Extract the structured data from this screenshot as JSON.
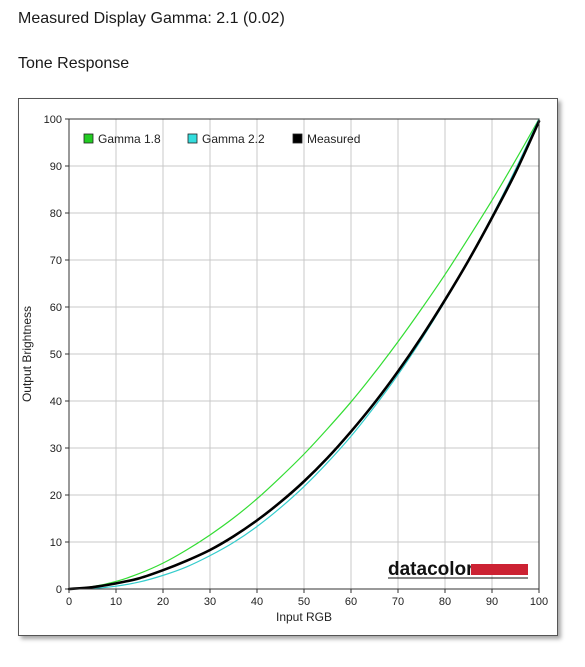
{
  "page": {
    "gamma_heading": "Measured Display Gamma: 2.1 (0.02)",
    "tone_heading": "Tone Response"
  },
  "logo": {
    "text": "datacolor",
    "bar_color": "#cc2233"
  },
  "chart_data": {
    "type": "line",
    "title": "",
    "xlabel": "Input RGB",
    "ylabel": "Output Brightness",
    "xlim": [
      0,
      100
    ],
    "ylim": [
      0,
      100
    ],
    "xticks": [
      0,
      10,
      20,
      30,
      40,
      50,
      60,
      70,
      80,
      90,
      100
    ],
    "yticks": [
      0,
      10,
      20,
      30,
      40,
      50,
      60,
      70,
      80,
      90,
      100
    ],
    "grid": true,
    "legend_position": "top-left",
    "x": [
      0,
      5,
      10,
      15,
      20,
      25,
      30,
      35,
      40,
      45,
      50,
      55,
      60,
      65,
      70,
      75,
      80,
      85,
      90,
      95,
      100
    ],
    "series": [
      {
        "name": "Gamma 1.8",
        "color": "#33dd33",
        "legend_color": "#22cc22",
        "width": 1.2,
        "values": [
          0,
          0.5,
          1.6,
          3.3,
          5.5,
          8.3,
          11.5,
          15.1,
          19.2,
          23.8,
          28.7,
          34.1,
          39.8,
          46.0,
          52.6,
          59.6,
          66.9,
          74.7,
          82.7,
          91.2,
          100
        ]
      },
      {
        "name": "Gamma 2.2",
        "color": "#33cccc",
        "legend_color": "#33dddd",
        "width": 1.2,
        "values": [
          0,
          0.1,
          0.6,
          1.5,
          2.9,
          4.7,
          7.1,
          9.9,
          13.3,
          17.3,
          21.8,
          26.9,
          32.5,
          38.8,
          45.6,
          53.1,
          61.2,
          69.9,
          79.3,
          89.3,
          100
        ]
      },
      {
        "name": "Measured",
        "color": "#000000",
        "legend_color": "#000000",
        "width": 2.6,
        "values": [
          0,
          0.4,
          1.2,
          2.3,
          4.0,
          6.0,
          8.3,
          11.2,
          14.6,
          18.5,
          22.9,
          27.9,
          33.5,
          39.6,
          46.3,
          53.6,
          61.5,
          69.9,
          79.0,
          88.6,
          99.5
        ]
      }
    ]
  }
}
